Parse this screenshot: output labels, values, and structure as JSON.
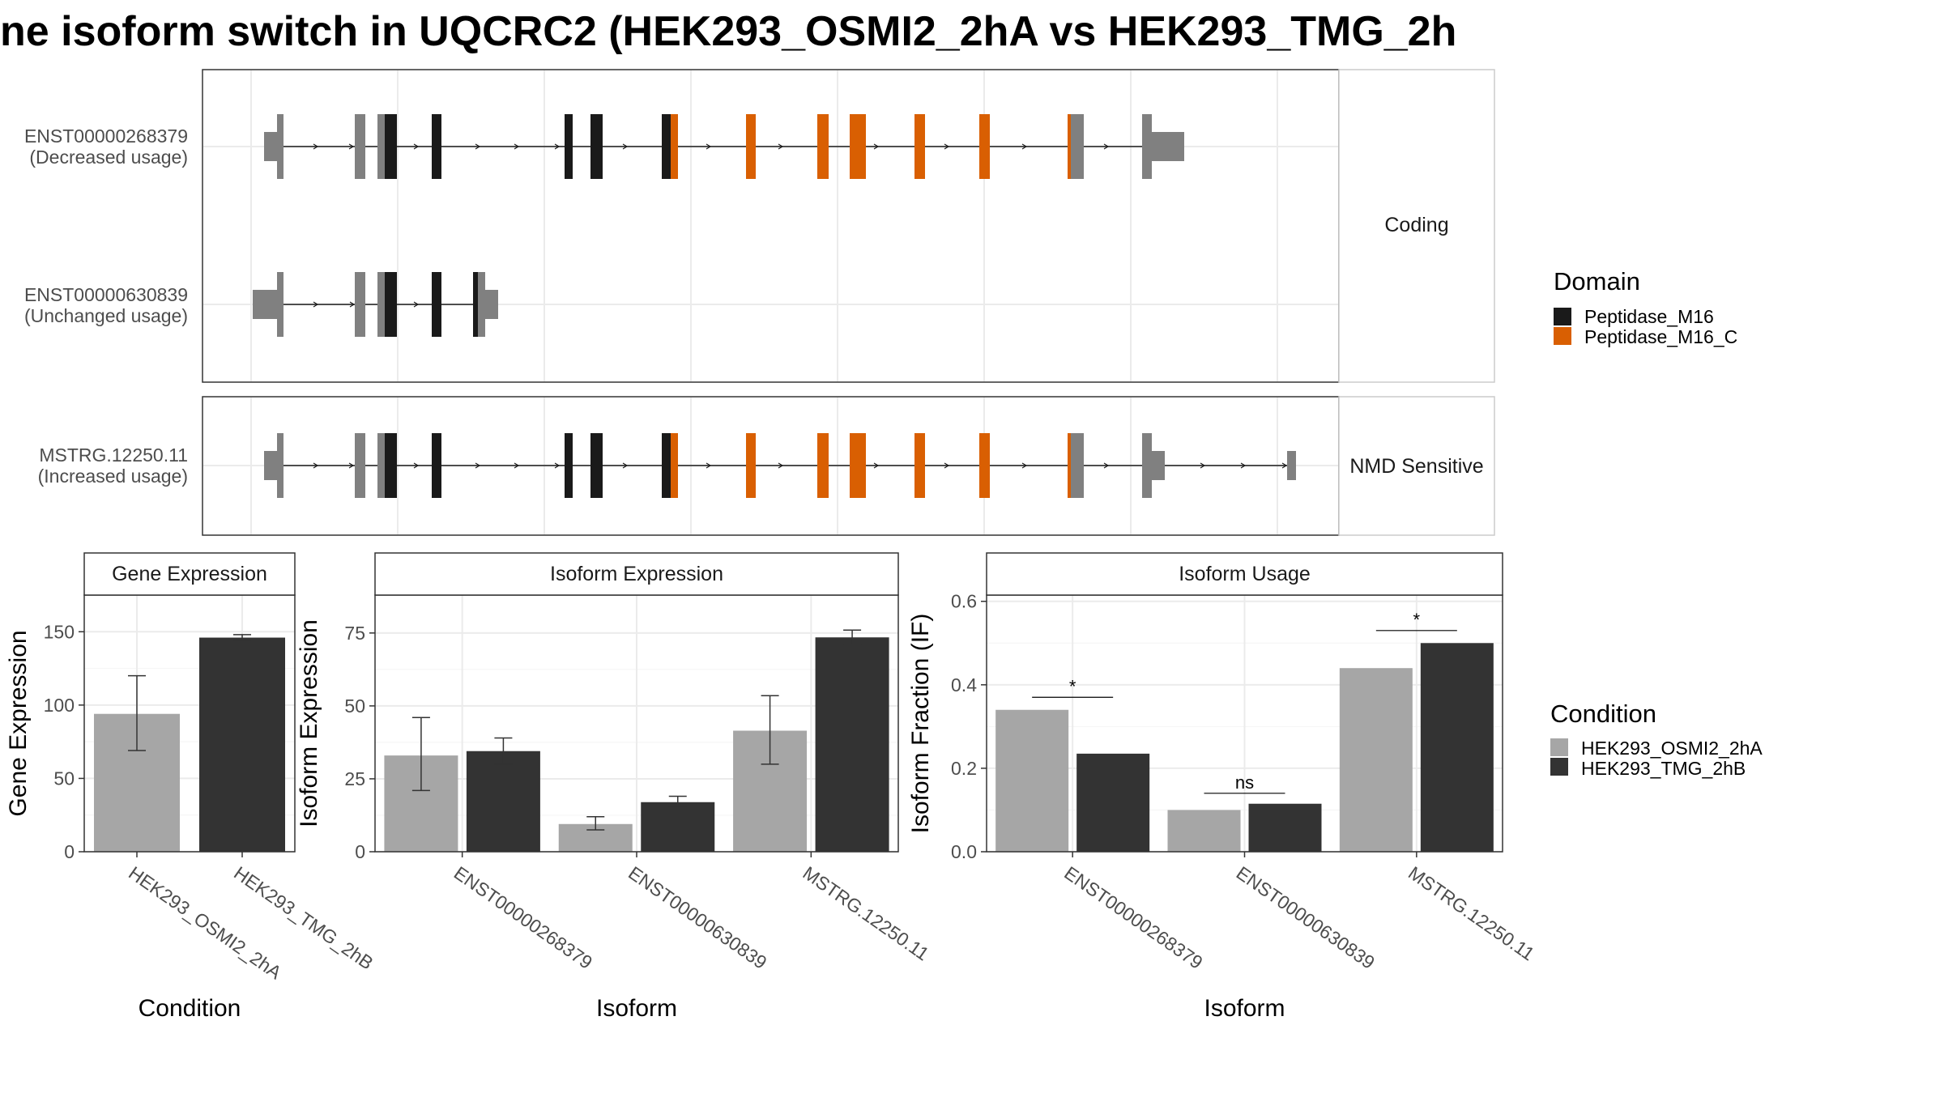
{
  "title": "ne isoform switch in UQCRC2 (HEK293_OSMI2_2hA vs HEK293_TMG_2h",
  "colors": {
    "exon_gray": "#808080",
    "peptidase_m16": "#1a1a1a",
    "peptidase_m16_c": "#d95f02",
    "cond_a": "#a6a6a6",
    "cond_b": "#333333",
    "panel_border": "#333333",
    "grid": "#ebebeb"
  },
  "transcript_panels": [
    {
      "strip": "Coding",
      "transcripts": [
        {
          "id": "ENST00000268379",
          "usage": "(Decreased usage)"
        },
        {
          "id": "ENST00000630839",
          "usage": "(Unchanged usage)"
        }
      ]
    },
    {
      "strip": "NMD Sensitive",
      "transcripts": [
        {
          "id": "MSTRG.12250.11",
          "usage": "(Increased usage)"
        }
      ]
    }
  ],
  "legend_domain": {
    "title": "Domain",
    "items": [
      {
        "label": "Peptidase_M16",
        "color": "#1a1a1a"
      },
      {
        "label": "Peptidase_M16_C",
        "color": "#d95f02"
      }
    ]
  },
  "legend_condition": {
    "title": "Condition",
    "items": [
      {
        "label": "HEK293_OSMI2_2hA",
        "color": "#a6a6a6"
      },
      {
        "label": "HEK293_TMG_2hB",
        "color": "#333333"
      }
    ]
  },
  "chart_data": [
    {
      "type": "bar",
      "title": "Gene Expression",
      "xlabel": "Condition",
      "ylabel": "Gene Expression",
      "categories": [
        "HEK293_OSMI2_2hA",
        "HEK293_TMG_2hB"
      ],
      "values": [
        94,
        146
      ],
      "error_low": [
        69,
        144
      ],
      "error_high": [
        120,
        148
      ],
      "ylim": [
        0,
        175
      ],
      "yticks": [
        0,
        50,
        100,
        150
      ]
    },
    {
      "type": "bar",
      "title": "Isoform Expression",
      "xlabel": "Isoform",
      "ylabel": "Isoform Expression",
      "categories": [
        "ENST00000268379",
        "ENST00000630839",
        "MSTRG.12250.11"
      ],
      "series": [
        {
          "name": "HEK293_OSMI2_2hA",
          "values": [
            33,
            9.5,
            41.5
          ],
          "error_low": [
            21,
            7.5,
            30
          ],
          "error_high": [
            46,
            12,
            53.5
          ]
        },
        {
          "name": "HEK293_TMG_2hB",
          "values": [
            34.5,
            17,
            73.5
          ],
          "error_low": [
            30,
            15.5,
            71
          ],
          "error_high": [
            39,
            19,
            76
          ]
        }
      ],
      "ylim": [
        0,
        88
      ],
      "yticks": [
        0,
        25,
        50,
        75
      ]
    },
    {
      "type": "bar",
      "title": "Isoform Usage",
      "xlabel": "Isoform",
      "ylabel": "Isoform Fraction (IF)",
      "categories": [
        "ENST00000268379",
        "ENST00000630839",
        "MSTRG.12250.11"
      ],
      "series": [
        {
          "name": "HEK293_OSMI2_2hA",
          "values": [
            0.34,
            0.1,
            0.44
          ]
        },
        {
          "name": "HEK293_TMG_2hB",
          "values": [
            0.235,
            0.115,
            0.5
          ]
        }
      ],
      "significance": [
        "*",
        "ns",
        "*"
      ],
      "significance_y": [
        0.37,
        0.14,
        0.53
      ],
      "ylim": [
        0,
        0.615
      ],
      "yticks": [
        "0.0",
        "0.2",
        "0.4",
        "0.6"
      ]
    }
  ]
}
